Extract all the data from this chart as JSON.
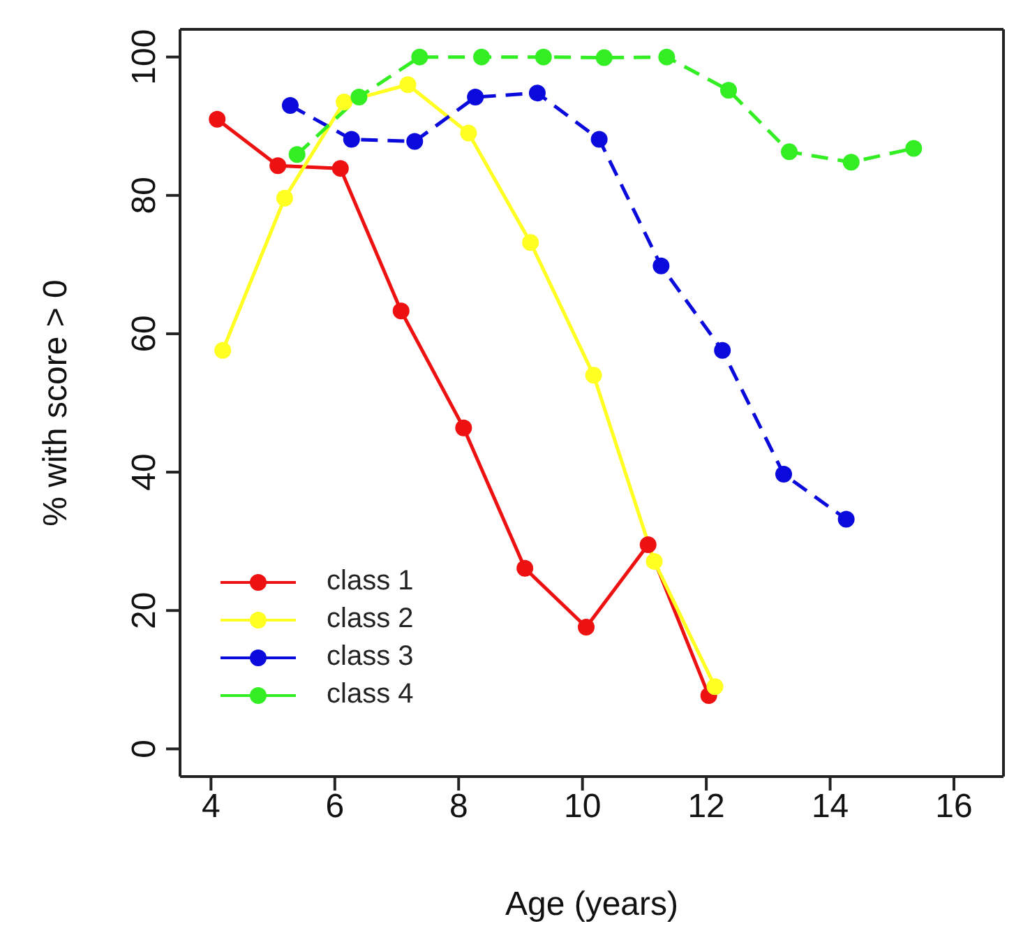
{
  "chart_data": {
    "type": "line",
    "xlabel": "Age (years)",
    "ylabel": "% with score > 0",
    "xlim": [
      3.5,
      16.8
    ],
    "xticks": [
      4,
      6,
      8,
      10,
      12,
      14,
      16
    ],
    "ylim": [
      -4,
      104
    ],
    "yticks": [
      0,
      20,
      40,
      60,
      80,
      100
    ],
    "legend": "bottom left",
    "marker": "circle",
    "series": [
      {
        "name": "class 1",
        "color": "#ee1111",
        "line_style": "solid",
        "x": [
          4.1,
          5.08,
          6.09,
          7.07,
          8.08,
          9.07,
          10.06,
          11.06,
          12.04
        ],
        "values": [
          91.0,
          84.3,
          83.9,
          63.3,
          46.4,
          26.1,
          17.6,
          29.5,
          7.7
        ]
      },
      {
        "name": "class 2",
        "color": "#ffff22",
        "line_style": "solid",
        "x": [
          4.19,
          5.19,
          6.15,
          7.18,
          8.16,
          9.16,
          10.18,
          11.16,
          12.14
        ],
        "values": [
          57.6,
          79.6,
          93.5,
          96.0,
          89.0,
          73.2,
          54.0,
          27.1,
          9.0
        ]
      },
      {
        "name": "class 3",
        "color": "#0a0adc",
        "line_style": "dashed",
        "x": [
          5.28,
          6.27,
          7.29,
          8.27,
          9.27,
          10.27,
          11.27,
          12.26,
          13.25,
          14.26
        ],
        "values": [
          93.0,
          88.1,
          87.8,
          94.2,
          94.8,
          88.1,
          69.8,
          57.6,
          39.7,
          33.2
        ]
      },
      {
        "name": "class 4",
        "color": "#33ee22",
        "line_style": "dashed",
        "x": [
          5.39,
          6.39,
          7.37,
          8.37,
          9.37,
          10.35,
          11.36,
          12.36,
          13.34,
          14.34,
          15.35
        ],
        "values": [
          85.9,
          94.2,
          100,
          100,
          100,
          99.9,
          100,
          95.2,
          86.3,
          84.8,
          86.8
        ]
      }
    ]
  }
}
